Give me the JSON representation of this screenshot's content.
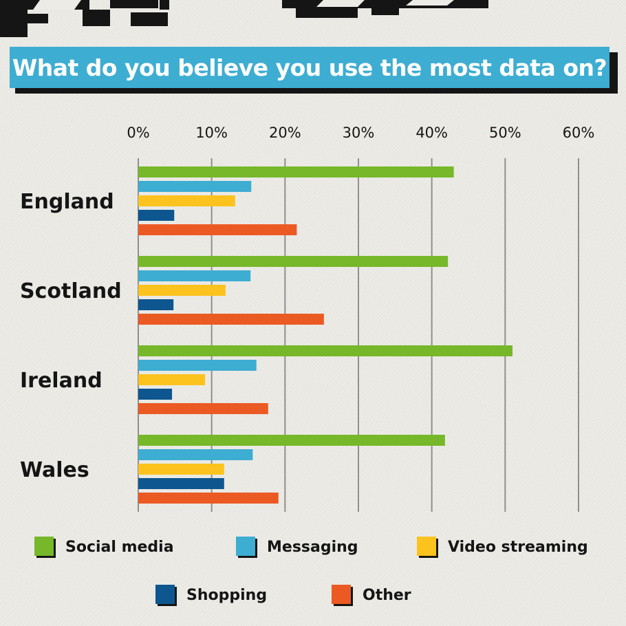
{
  "title": "What do you believe you use the most data on?",
  "chart_data": {
    "type": "bar",
    "orientation": "horizontal",
    "title": "What do you believe you use the most data on?",
    "xlabel": "",
    "ylabel": "",
    "xlim": [
      0,
      60
    ],
    "x_ticks": [
      0,
      10,
      20,
      30,
      40,
      50,
      60
    ],
    "x_tick_labels": [
      "0%",
      "10%",
      "20%",
      "30%",
      "40%",
      "50%",
      "60%"
    ],
    "x_tick_position": "top",
    "grid": true,
    "legend_position": "bottom",
    "categories": [
      "England",
      "Scotland",
      "Ireland",
      "Wales"
    ],
    "series": [
      {
        "name": "Social media",
        "color": "#76b82a",
        "values": [
          43,
          42.2,
          51,
          41.8
        ]
      },
      {
        "name": "Messaging",
        "color": "#3eadd2",
        "values": [
          15.4,
          15.3,
          16.1,
          15.6
        ]
      },
      {
        "name": "Video streaming",
        "color": "#fcc31e",
        "values": [
          13.2,
          11.9,
          9.1,
          11.7
        ]
      },
      {
        "name": "Shopping",
        "color": "#0e568f",
        "values": [
          4.9,
          4.8,
          4.6,
          11.7
        ]
      },
      {
        "name": "Other",
        "color": "#ec5a24",
        "values": [
          21.6,
          25.3,
          17.7,
          19.1
        ]
      }
    ]
  }
}
